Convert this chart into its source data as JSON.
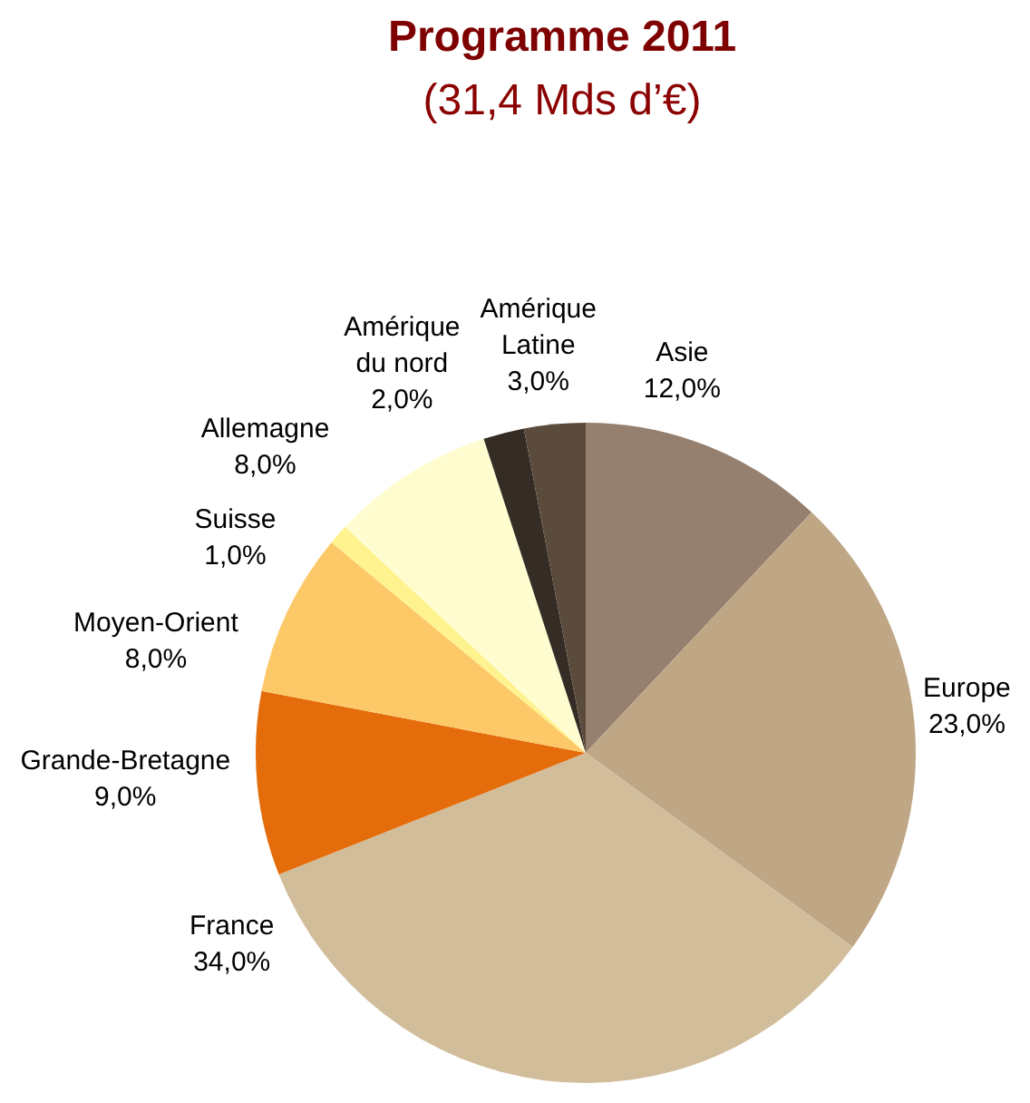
{
  "chart_data": {
    "type": "pie",
    "title": "Programme 2011",
    "subtitle": "(31,4 Mds d’€)",
    "categories": [
      "Asie",
      "Europe",
      "France",
      "Grande-Bretagne",
      "Moyen-Orient",
      "Suisse",
      "Allemagne",
      "Amérique du nord",
      "Amérique Latine"
    ],
    "values": [
      12,
      23,
      34,
      9,
      8,
      1,
      8,
      2,
      3
    ],
    "colors": [
      "#958070",
      "#bfa785",
      "#d2bd9b",
      "#e46c0a",
      "#fdc867",
      "#fff38f",
      "#fffdd0",
      "#352d25",
      "#5b4b3c"
    ],
    "value_labels": [
      "12,0%",
      "23,0%",
      "34,0%",
      "9,0%",
      "8,0%",
      "1,0%",
      "8,0%",
      "2,0%",
      "3,0%"
    ]
  }
}
